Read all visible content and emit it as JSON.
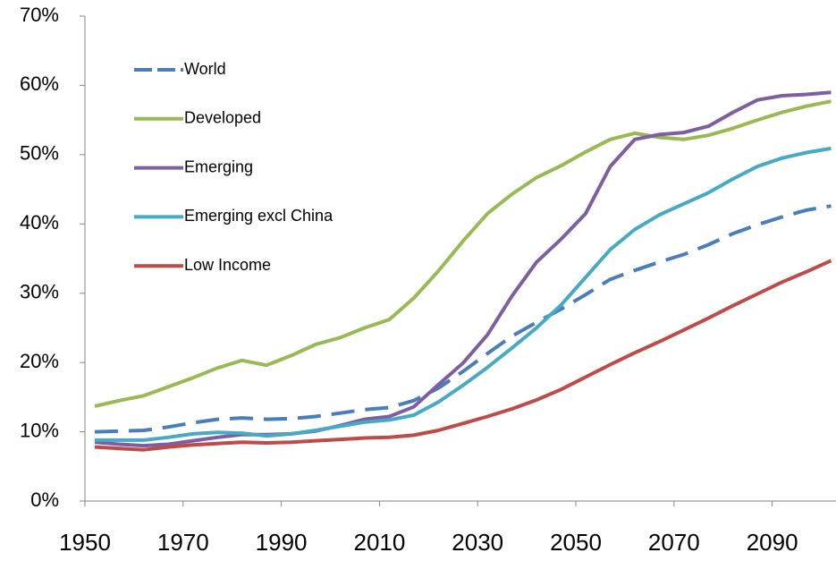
{
  "chart_data": {
    "type": "line",
    "x": [
      1952,
      1957,
      1962,
      1967,
      1972,
      1977,
      1982,
      1987,
      1992,
      1997,
      2002,
      2007,
      2012,
      2017,
      2022,
      2027,
      2032,
      2037,
      2042,
      2047,
      2052,
      2057,
      2062,
      2067,
      2072,
      2077,
      2082,
      2087,
      2092,
      2097,
      2102
    ],
    "xlim": [
      1950,
      2103
    ],
    "xticks": [
      1950,
      1970,
      1990,
      2010,
      2030,
      2050,
      2070,
      2090
    ],
    "ylim": [
      0,
      70
    ],
    "yticks": [
      {
        "value": 0,
        "label": "0%"
      },
      {
        "value": 10,
        "label": "10%"
      },
      {
        "value": 20,
        "label": "20%"
      },
      {
        "value": 30,
        "label": "30%"
      },
      {
        "value": 40,
        "label": "40%"
      },
      {
        "value": 50,
        "label": "50%"
      },
      {
        "value": 60,
        "label": "60%"
      },
      {
        "value": 70,
        "label": "70%"
      }
    ],
    "grid": false,
    "legend": "upper left",
    "series": [
      {
        "name": "World",
        "color": "#4a7ebb",
        "dashed": true,
        "values": [
          10.0,
          10.1,
          10.2,
          10.7,
          11.3,
          11.8,
          12.0,
          11.8,
          11.9,
          12.2,
          12.7,
          13.2,
          13.5,
          14.5,
          16.3,
          18.7,
          21.3,
          23.8,
          25.8,
          27.7,
          29.8,
          32.0,
          33.3,
          34.5,
          35.6,
          37.0,
          38.6,
          39.9,
          41.0,
          42.0,
          42.6
        ]
      },
      {
        "name": "Developed",
        "color": "#98b954",
        "values": [
          13.7,
          14.5,
          15.2,
          16.5,
          17.8,
          19.2,
          20.3,
          19.6,
          21.0,
          22.6,
          23.6,
          25.0,
          26.2,
          29.3,
          33.2,
          37.5,
          41.5,
          44.3,
          46.7,
          48.4,
          50.4,
          52.2,
          53.1,
          52.5,
          52.2,
          52.8,
          53.8,
          55.0,
          56.1,
          57.0,
          57.7
        ]
      },
      {
        "name": "Emerging",
        "color": "#7d5fa0",
        "values": [
          8.5,
          8.2,
          8.0,
          8.2,
          8.7,
          9.2,
          9.6,
          9.6,
          9.7,
          10.1,
          10.9,
          11.8,
          12.2,
          13.6,
          16.8,
          19.9,
          24.0,
          29.6,
          34.5,
          37.8,
          41.5,
          48.3,
          52.2,
          52.9,
          53.2,
          54.1,
          56.1,
          57.9,
          58.5,
          58.7,
          59.0
        ]
      },
      {
        "name": "Emerging excl China",
        "color": "#46aac5",
        "values": [
          8.8,
          8.8,
          8.8,
          9.2,
          9.7,
          9.9,
          9.8,
          9.4,
          9.7,
          10.2,
          10.8,
          11.4,
          11.7,
          12.4,
          14.3,
          16.7,
          19.3,
          22.1,
          25.0,
          28.3,
          32.3,
          36.3,
          39.2,
          41.3,
          42.9,
          44.5,
          46.5,
          48.3,
          49.5,
          50.3,
          50.9
        ]
      },
      {
        "name": "Low Income",
        "color": "#be4b48",
        "values": [
          7.8,
          7.6,
          7.4,
          7.8,
          8.1,
          8.3,
          8.5,
          8.4,
          8.5,
          8.7,
          8.9,
          9.1,
          9.2,
          9.5,
          10.2,
          11.2,
          12.2,
          13.3,
          14.6,
          16.1,
          17.9,
          19.7,
          21.4,
          23.0,
          24.7,
          26.4,
          28.2,
          29.9,
          31.6,
          33.1,
          34.7
        ]
      }
    ]
  }
}
